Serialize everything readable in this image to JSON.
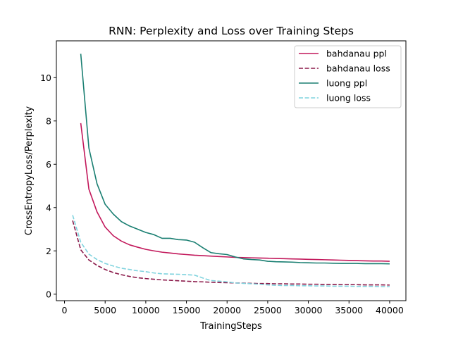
{
  "chart_data": {
    "type": "line",
    "title": "RNN: Perplexity and Loss over Training Steps",
    "xlabel": "TrainingSteps",
    "ylabel": "CrossEntropyLoss/Perplexity",
    "xlim": [
      -1000,
      42000
    ],
    "ylim": [
      -0.3,
      11.7
    ],
    "xticks": [
      0,
      5000,
      10000,
      15000,
      20000,
      25000,
      30000,
      35000,
      40000
    ],
    "yticks": [
      0,
      2,
      4,
      6,
      8,
      10
    ],
    "grid": false,
    "legend_position": "top-right",
    "series": [
      {
        "name": "bahdanau ppl",
        "color": "#c2185b",
        "dash": "solid",
        "x": [
          2000,
          3000,
          4000,
          5000,
          6000,
          7000,
          8000,
          9000,
          10000,
          11000,
          12000,
          13000,
          14000,
          15000,
          16000,
          17000,
          18000,
          19000,
          20000,
          21000,
          22000,
          23000,
          24000,
          25000,
          26000,
          27000,
          28000,
          29000,
          30000,
          31000,
          32000,
          33000,
          34000,
          35000,
          36000,
          37000,
          38000,
          39000,
          40000
        ],
        "y": [
          7.9,
          4.85,
          3.8,
          3.1,
          2.7,
          2.45,
          2.28,
          2.17,
          2.07,
          2.0,
          1.94,
          1.9,
          1.86,
          1.83,
          1.8,
          1.78,
          1.76,
          1.74,
          1.72,
          1.7,
          1.69,
          1.68,
          1.67,
          1.66,
          1.65,
          1.64,
          1.63,
          1.62,
          1.61,
          1.6,
          1.59,
          1.58,
          1.57,
          1.56,
          1.55,
          1.54,
          1.53,
          1.53,
          1.52
        ]
      },
      {
        "name": "bahdanau loss",
        "color": "#8b1a4a",
        "dash": "dashed",
        "x": [
          1000,
          2000,
          3000,
          4000,
          5000,
          6000,
          7000,
          8000,
          9000,
          10000,
          11000,
          12000,
          13000,
          14000,
          15000,
          16000,
          17000,
          18000,
          19000,
          20000,
          21000,
          22000,
          23000,
          24000,
          25000,
          26000,
          27000,
          28000,
          29000,
          30000,
          31000,
          32000,
          33000,
          34000,
          35000,
          36000,
          37000,
          38000,
          39000,
          40000
        ],
        "y": [
          3.4,
          2.05,
          1.58,
          1.33,
          1.14,
          1.0,
          0.9,
          0.82,
          0.76,
          0.72,
          0.69,
          0.66,
          0.64,
          0.62,
          0.6,
          0.58,
          0.57,
          0.55,
          0.54,
          0.53,
          0.52,
          0.51,
          0.5,
          0.49,
          0.49,
          0.48,
          0.48,
          0.47,
          0.47,
          0.46,
          0.46,
          0.45,
          0.45,
          0.44,
          0.44,
          0.44,
          0.43,
          0.43,
          0.43,
          0.42
        ]
      },
      {
        "name": "luong ppl",
        "color": "#1a7f72",
        "dash": "solid",
        "x": [
          2000,
          3000,
          4000,
          5000,
          6000,
          7000,
          8000,
          9000,
          10000,
          11000,
          12000,
          13000,
          14000,
          15000,
          16000,
          17000,
          18000,
          19000,
          20000,
          21000,
          22000,
          23000,
          24000,
          25000,
          26000,
          27000,
          28000,
          29000,
          30000,
          31000,
          32000,
          33000,
          34000,
          35000,
          36000,
          37000,
          38000,
          39000,
          40000
        ],
        "y": [
          11.1,
          6.75,
          5.1,
          4.15,
          3.7,
          3.35,
          3.15,
          3.0,
          2.85,
          2.75,
          2.58,
          2.58,
          2.52,
          2.5,
          2.4,
          2.15,
          1.92,
          1.87,
          1.83,
          1.72,
          1.63,
          1.6,
          1.58,
          1.52,
          1.5,
          1.49,
          1.48,
          1.46,
          1.45,
          1.44,
          1.44,
          1.43,
          1.42,
          1.42,
          1.42,
          1.41,
          1.41,
          1.41,
          1.4
        ]
      },
      {
        "name": "luong loss",
        "color": "#7fd3de",
        "dash": "dashed",
        "x": [
          1000,
          2000,
          3000,
          4000,
          5000,
          6000,
          7000,
          8000,
          9000,
          10000,
          11000,
          12000,
          13000,
          14000,
          15000,
          16000,
          17000,
          18000,
          19000,
          20000,
          21000,
          22000,
          23000,
          24000,
          25000,
          26000,
          27000,
          28000,
          29000,
          30000,
          31000,
          32000,
          33000,
          34000,
          35000,
          36000,
          37000,
          38000,
          39000,
          40000
        ],
        "y": [
          3.65,
          2.4,
          1.85,
          1.6,
          1.42,
          1.3,
          1.2,
          1.14,
          1.08,
          1.04,
          0.98,
          0.94,
          0.93,
          0.92,
          0.9,
          0.88,
          0.75,
          0.63,
          0.6,
          0.57,
          0.52,
          0.5,
          0.48,
          0.46,
          0.43,
          0.41,
          0.4,
          0.4,
          0.39,
          0.39,
          0.38,
          0.38,
          0.37,
          0.37,
          0.37,
          0.36,
          0.36,
          0.36,
          0.35,
          0.35
        ]
      }
    ]
  }
}
